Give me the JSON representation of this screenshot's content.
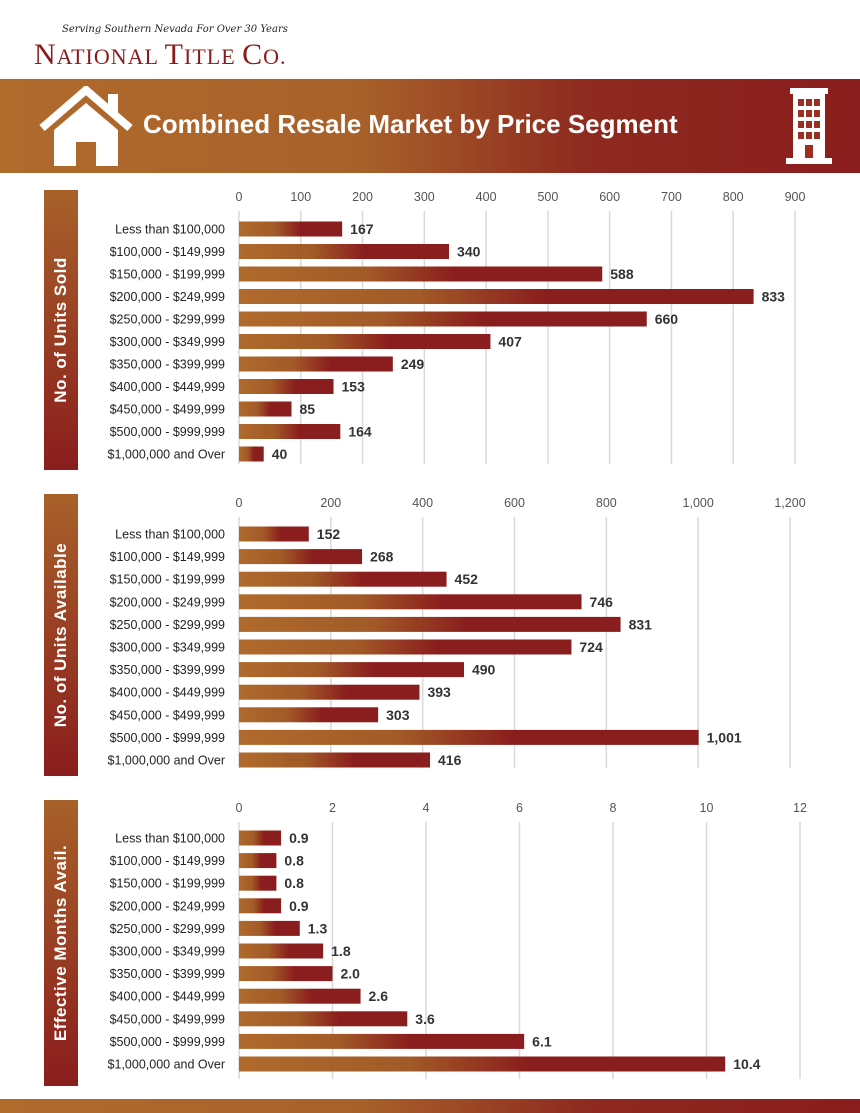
{
  "header": {
    "tagline": "Serving Southern Nevada For Over 30 Years",
    "brand": {
      "w1_cap": "N",
      "w1_rest": "ATIONAL",
      "w2_cap": "T",
      "w2_rest": "ITLE",
      "w3_cap": "C",
      "w3_rest": "O."
    },
    "title": "Combined Resale Market by Price Segment"
  },
  "colors": {
    "brown": "#b06a2c",
    "red": "#8a1d1d",
    "grid": "#d9d9d9"
  },
  "chart_data": [
    {
      "type": "bar",
      "orientation": "horizontal",
      "side_label": "No. of Units Sold",
      "categories": [
        "Less than $100,000",
        "$100,000 - $149,999",
        "$150,000 - $199,999",
        "$200,000 - $249,999",
        "$250,000 - $299,999",
        "$300,000 - $349,999",
        "$350,000 - $399,999",
        "$400,000 - $449,999",
        "$450,000 - $499,999",
        "$500,000 - $999,999",
        "$1,000,000 and Over"
      ],
      "values": [
        167,
        340,
        588,
        833,
        660,
        407,
        249,
        153,
        85,
        164,
        40
      ],
      "value_labels": [
        "167",
        "340",
        "588",
        "833",
        "660",
        "407",
        "249",
        "153",
        "85",
        "164",
        "40"
      ],
      "xlim": [
        0,
        900
      ],
      "ticks": [
        0,
        100,
        200,
        300,
        400,
        500,
        600,
        700,
        800,
        900
      ],
      "tick_labels": [
        "0",
        "100",
        "200",
        "300",
        "400",
        "500",
        "600",
        "700",
        "800",
        "900"
      ],
      "axis_position": "top",
      "grid": true
    },
    {
      "type": "bar",
      "orientation": "horizontal",
      "side_label": "No. of Units Available",
      "categories": [
        "Less than $100,000",
        "$100,000 - $149,999",
        "$150,000 - $199,999",
        "$200,000 - $249,999",
        "$250,000 - $299,999",
        "$300,000 - $349,999",
        "$350,000 - $399,999",
        "$400,000 - $449,999",
        "$450,000 - $499,999",
        "$500,000 - $999,999",
        "$1,000,000 and Over"
      ],
      "values": [
        152,
        268,
        452,
        746,
        831,
        724,
        490,
        393,
        303,
        1001,
        416
      ],
      "value_labels": [
        "152",
        "268",
        "452",
        "746",
        "831",
        "724",
        "490",
        "393",
        "303",
        "1,001",
        "416"
      ],
      "xlim": [
        0,
        1200
      ],
      "ticks": [
        0,
        200,
        400,
        600,
        800,
        1000,
        1200
      ],
      "tick_labels": [
        "0",
        "200",
        "400",
        "600",
        "800",
        "1,000",
        "1,200"
      ],
      "axis_position": "top",
      "grid": true
    },
    {
      "type": "bar",
      "orientation": "horizontal",
      "side_label": "Effective Months Avail.",
      "categories": [
        "Less than $100,000",
        "$100,000 - $149,999",
        "$150,000 - $199,999",
        "$200,000 - $249,999",
        "$250,000 - $299,999",
        "$300,000 - $349,999",
        "$350,000 - $399,999",
        "$400,000 - $449,999",
        "$450,000 - $499,999",
        "$500,000 - $999,999",
        "$1,000,000 and Over"
      ],
      "values": [
        0.9,
        0.8,
        0.8,
        0.9,
        1.3,
        1.8,
        2.0,
        2.6,
        3.6,
        6.1,
        10.4
      ],
      "value_labels": [
        "0.9",
        "0.8",
        "0.8",
        "0.9",
        "1.3",
        "1.8",
        "2.0",
        "2.6",
        "3.6",
        "6.1",
        "10.4"
      ],
      "xlim": [
        0,
        12
      ],
      "ticks": [
        0,
        2,
        4,
        6,
        8,
        10,
        12
      ],
      "tick_labels": [
        "0",
        "2",
        "4",
        "6",
        "8",
        "10",
        "12"
      ],
      "axis_position": "top",
      "grid": true
    }
  ]
}
